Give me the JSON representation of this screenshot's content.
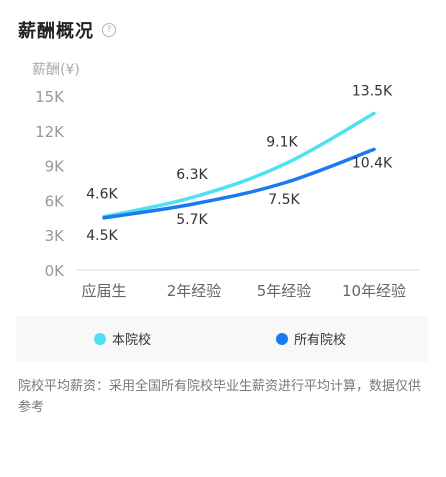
{
  "header": {
    "title": "薪酬概况",
    "help_icon": "?"
  },
  "chart_data": {
    "type": "line",
    "ylabel": "薪酬(¥)",
    "ylim": [
      0,
      15000
    ],
    "yticks": [
      {
        "value": 0,
        "label": "0K"
      },
      {
        "value": 3000,
        "label": "3K"
      },
      {
        "value": 6000,
        "label": "6K"
      },
      {
        "value": 9000,
        "label": "9K"
      },
      {
        "value": 12000,
        "label": "12K"
      },
      {
        "value": 15000,
        "label": "15K"
      }
    ],
    "categories": [
      "应届生",
      "2年经验",
      "5年经验",
      "10年经验"
    ],
    "series": [
      {
        "name": "本院校",
        "color": "#4fe1f2",
        "values": [
          4600,
          6300,
          9100,
          13500
        ],
        "labels": [
          "4.6K",
          "6.3K",
          "9.1K",
          "13.5K"
        ]
      },
      {
        "name": "所有院校",
        "color": "#1c7af0",
        "values": [
          4500,
          5700,
          7500,
          10400
        ],
        "labels": [
          "4.5K",
          "5.7K",
          "7.5K",
          "10.4K"
        ]
      }
    ],
    "grid": false,
    "legend_position": "bottom"
  },
  "note": "院校平均薪资：采用全国所有院校毕业生薪资进行平均计算，数据仅供参考"
}
